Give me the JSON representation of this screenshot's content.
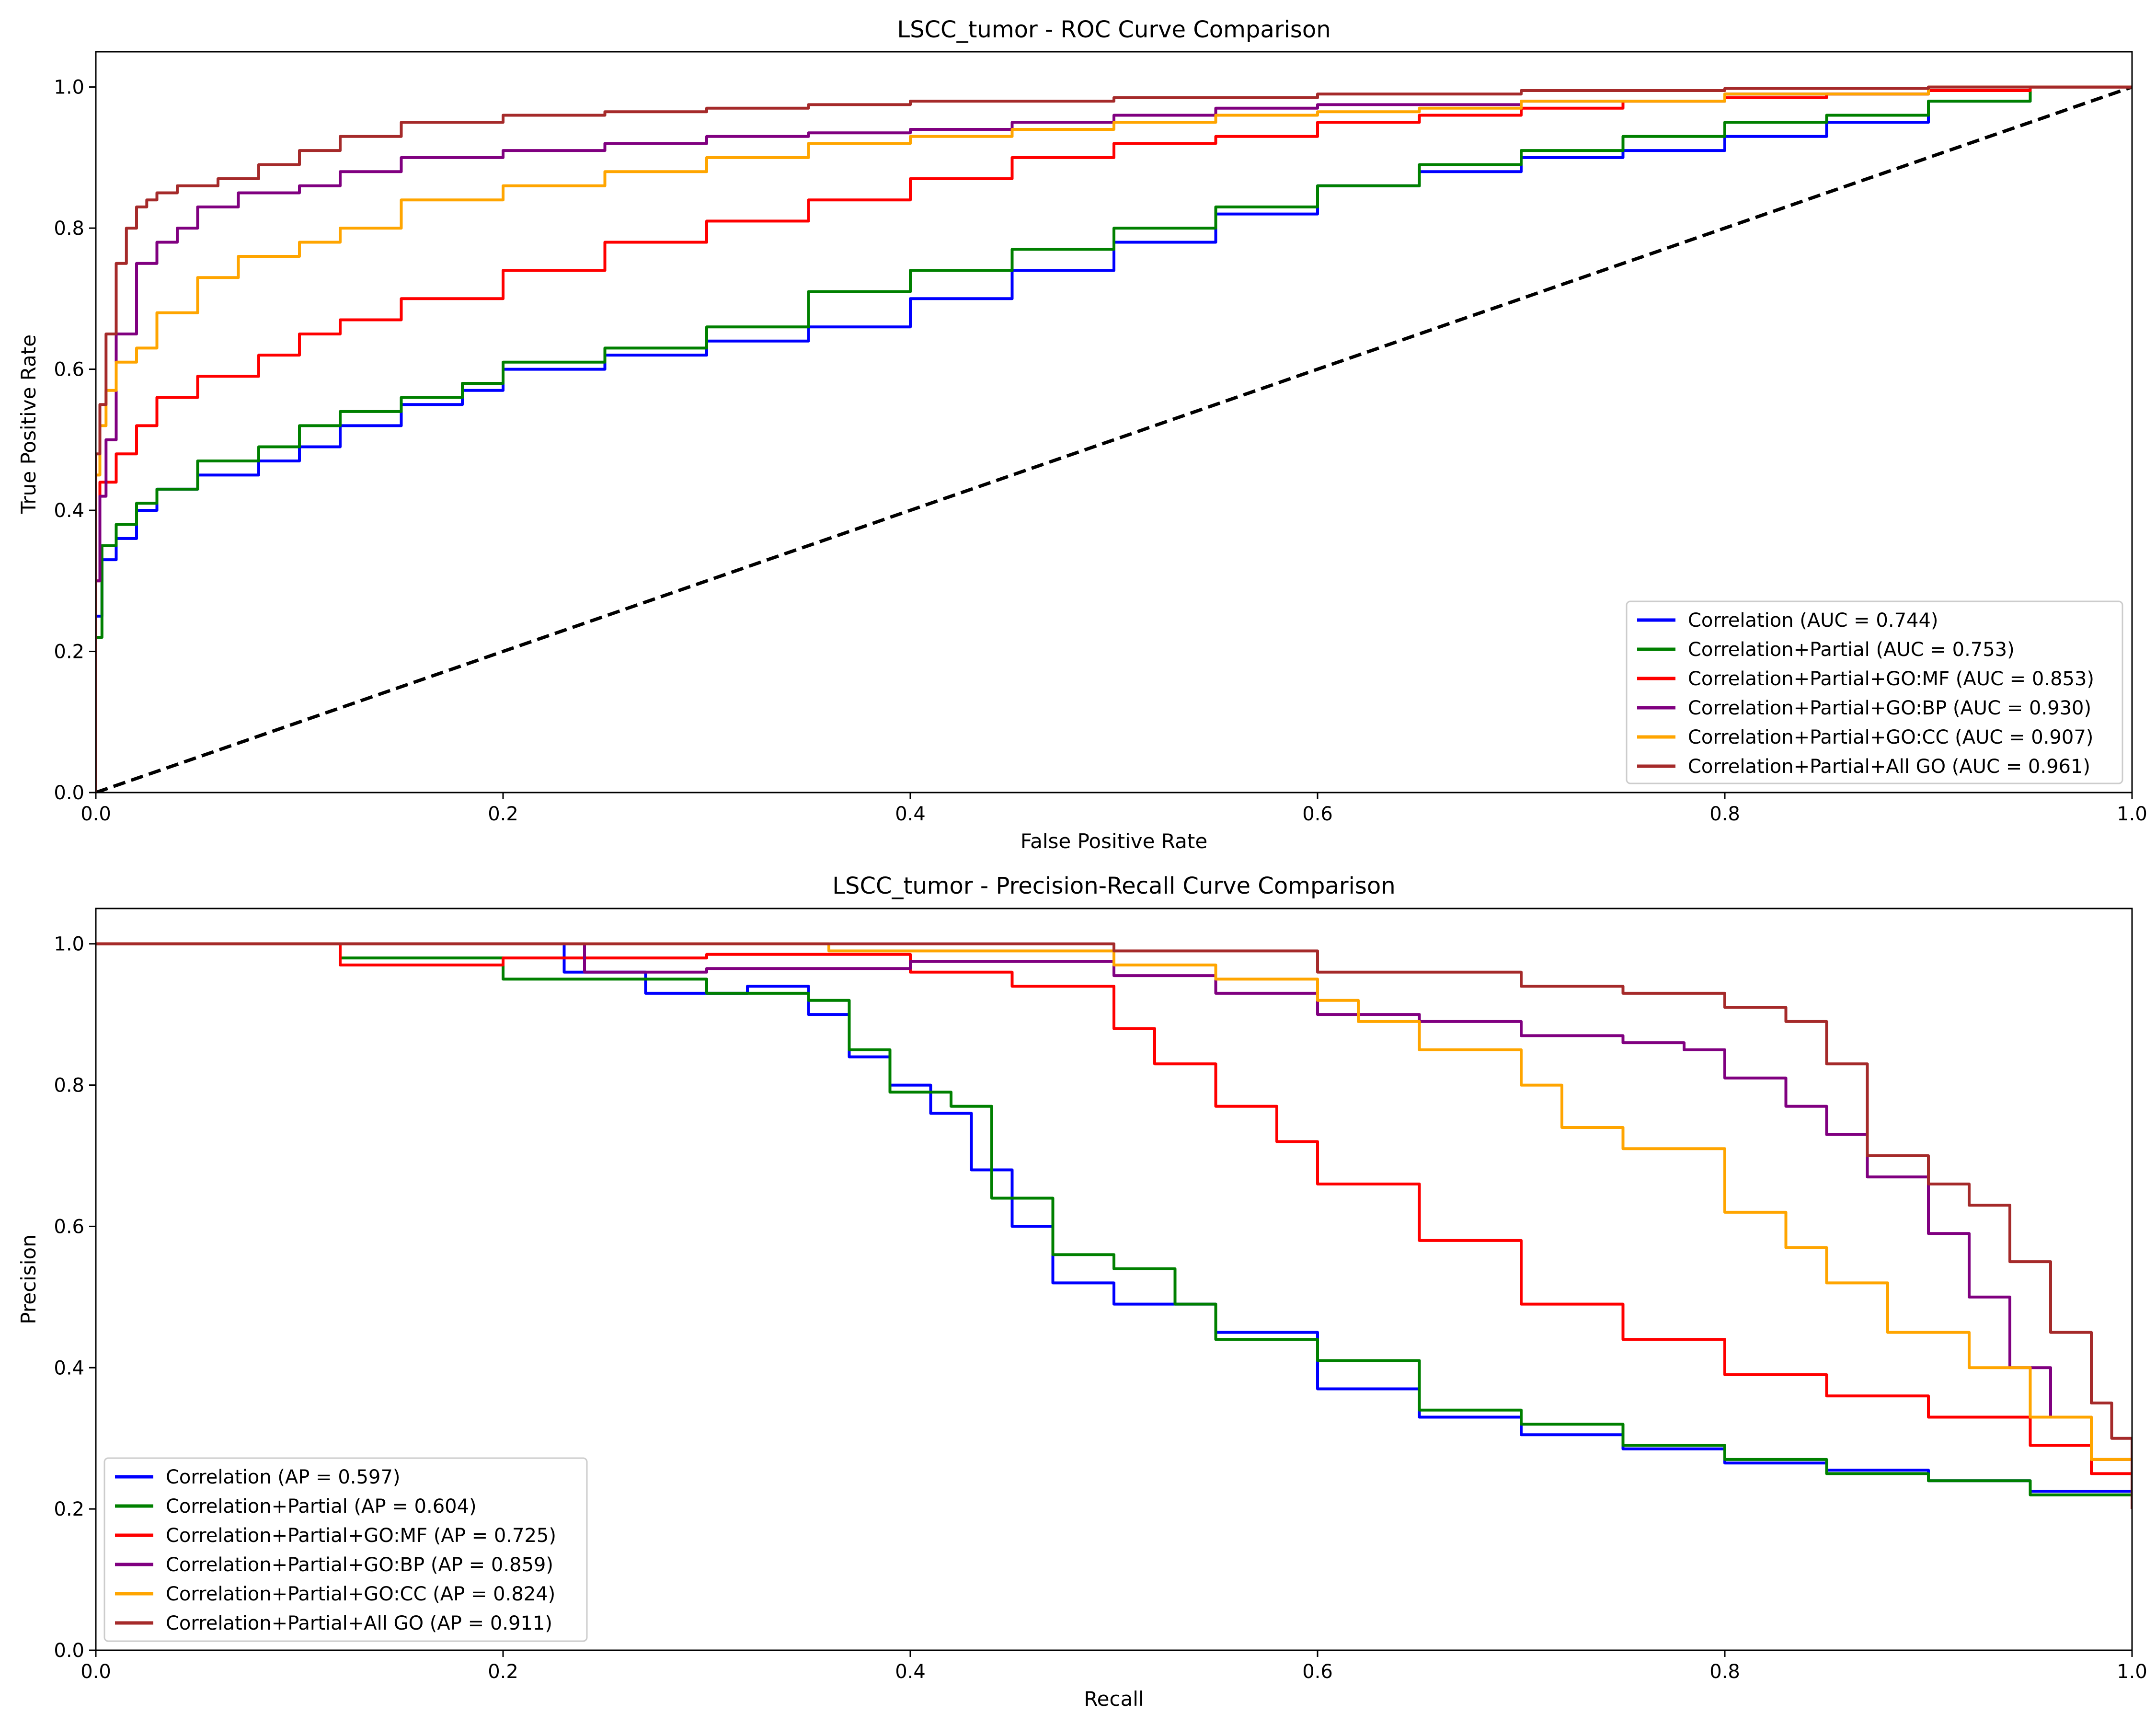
{
  "chart_data": [
    {
      "type": "line",
      "title": "LSCC_tumor - ROC Curve Comparison",
      "xlabel": "False Positive Rate",
      "ylabel": "True Positive Rate",
      "xlim": [
        0.0,
        1.0
      ],
      "ylim": [
        0.0,
        1.05
      ],
      "xticks": [
        "0.0",
        "0.2",
        "0.4",
        "0.6",
        "0.8",
        "1.0"
      ],
      "yticks": [
        "0.0",
        "0.2",
        "0.4",
        "0.6",
        "0.8",
        "1.0"
      ],
      "grid": false,
      "legend_position": "lower-right",
      "series": [
        {
          "name": "Correlation (AUC = 0.744)",
          "color": "#0000ff",
          "x": [
            0,
            0.003,
            0.01,
            0.02,
            0.03,
            0.05,
            0.08,
            0.1,
            0.12,
            0.15,
            0.18,
            0.2,
            0.25,
            0.3,
            0.35,
            0.4,
            0.45,
            0.5,
            0.55,
            0.6,
            0.65,
            0.7,
            0.75,
            0.8,
            0.85,
            0.9,
            0.95,
            1.0
          ],
          "y": [
            0,
            0.25,
            0.33,
            0.36,
            0.4,
            0.43,
            0.45,
            0.47,
            0.49,
            0.52,
            0.55,
            0.57,
            0.6,
            0.62,
            0.64,
            0.66,
            0.7,
            0.74,
            0.78,
            0.82,
            0.86,
            0.88,
            0.9,
            0.91,
            0.93,
            0.95,
            0.98,
            1.0
          ]
        },
        {
          "name": "Correlation+Partial (AUC = 0.753)",
          "color": "#008000",
          "x": [
            0,
            0.003,
            0.01,
            0.02,
            0.03,
            0.05,
            0.08,
            0.1,
            0.12,
            0.15,
            0.18,
            0.2,
            0.25,
            0.3,
            0.35,
            0.4,
            0.45,
            0.5,
            0.55,
            0.6,
            0.65,
            0.7,
            0.75,
            0.8,
            0.85,
            0.9,
            0.95,
            1.0
          ],
          "y": [
            0,
            0.22,
            0.35,
            0.38,
            0.41,
            0.43,
            0.47,
            0.49,
            0.52,
            0.54,
            0.56,
            0.58,
            0.61,
            0.63,
            0.66,
            0.71,
            0.74,
            0.77,
            0.8,
            0.83,
            0.86,
            0.89,
            0.91,
            0.93,
            0.95,
            0.96,
            0.98,
            1.0
          ]
        },
        {
          "name": "Correlation+Partial+GO:MF (AUC = 0.853)",
          "color": "#ff0000",
          "x": [
            0,
            0.002,
            0.01,
            0.02,
            0.03,
            0.05,
            0.08,
            0.1,
            0.12,
            0.15,
            0.2,
            0.25,
            0.3,
            0.35,
            0.4,
            0.45,
            0.5,
            0.55,
            0.6,
            0.65,
            0.7,
            0.75,
            0.8,
            0.85,
            0.9,
            0.95,
            1.0
          ],
          "y": [
            0,
            0.3,
            0.44,
            0.48,
            0.52,
            0.56,
            0.59,
            0.62,
            0.65,
            0.67,
            0.7,
            0.74,
            0.78,
            0.81,
            0.84,
            0.87,
            0.9,
            0.92,
            0.93,
            0.95,
            0.96,
            0.97,
            0.98,
            0.985,
            0.99,
            0.995,
            1.0
          ]
        },
        {
          "name": "Correlation+Partial+GO:BP (AUC = 0.930)",
          "color": "#800080",
          "x": [
            0,
            0.002,
            0.005,
            0.01,
            0.02,
            0.03,
            0.04,
            0.05,
            0.07,
            0.1,
            0.12,
            0.15,
            0.2,
            0.25,
            0.3,
            0.35,
            0.4,
            0.45,
            0.5,
            0.55,
            0.6,
            0.7,
            0.8,
            0.9,
            1.0
          ],
          "y": [
            0,
            0.3,
            0.42,
            0.5,
            0.65,
            0.75,
            0.78,
            0.8,
            0.83,
            0.85,
            0.86,
            0.88,
            0.9,
            0.91,
            0.92,
            0.93,
            0.935,
            0.94,
            0.95,
            0.96,
            0.97,
            0.975,
            0.98,
            0.99,
            1.0
          ]
        },
        {
          "name": "Correlation+Partial+GO:CC (AUC = 0.907)",
          "color": "#ffa500",
          "x": [
            0,
            0.002,
            0.005,
            0.01,
            0.02,
            0.03,
            0.05,
            0.07,
            0.1,
            0.12,
            0.15,
            0.2,
            0.25,
            0.3,
            0.35,
            0.4,
            0.45,
            0.5,
            0.55,
            0.6,
            0.65,
            0.7,
            0.8,
            0.9,
            1.0
          ],
          "y": [
            0,
            0.45,
            0.52,
            0.57,
            0.61,
            0.63,
            0.68,
            0.73,
            0.76,
            0.78,
            0.8,
            0.84,
            0.86,
            0.88,
            0.9,
            0.92,
            0.93,
            0.94,
            0.95,
            0.96,
            0.965,
            0.97,
            0.98,
            0.99,
            1.0
          ]
        },
        {
          "name": "Correlation+Partial+All GO (AUC = 0.961)",
          "color": "#a52a2a",
          "x": [
            0,
            0.002,
            0.005,
            0.01,
            0.015,
            0.02,
            0.025,
            0.03,
            0.04,
            0.06,
            0.08,
            0.1,
            0.12,
            0.15,
            0.2,
            0.25,
            0.3,
            0.35,
            0.4,
            0.5,
            0.6,
            0.7,
            0.8,
            0.9,
            1.0
          ],
          "y": [
            0,
            0.48,
            0.55,
            0.65,
            0.75,
            0.8,
            0.83,
            0.84,
            0.85,
            0.86,
            0.87,
            0.89,
            0.91,
            0.93,
            0.95,
            0.96,
            0.965,
            0.97,
            0.975,
            0.98,
            0.985,
            0.99,
            0.995,
            0.998,
            1.0
          ]
        }
      ],
      "reference_line": {
        "x": [
          0,
          1
        ],
        "y": [
          0,
          1
        ],
        "color": "#000000",
        "style": "dashed"
      }
    },
    {
      "type": "line",
      "title": "LSCC_tumor - Precision-Recall Curve Comparison",
      "xlabel": "Recall",
      "ylabel": "Precision",
      "xlim": [
        0.0,
        1.0
      ],
      "ylim": [
        0.0,
        1.05
      ],
      "xticks": [
        "0.0",
        "0.2",
        "0.4",
        "0.6",
        "0.8",
        "1.0"
      ],
      "yticks": [
        "0.0",
        "0.2",
        "0.4",
        "0.6",
        "0.8",
        "1.0"
      ],
      "grid": false,
      "legend_position": "lower-left",
      "series": [
        {
          "name": "Correlation (AP = 0.597)",
          "color": "#0000ff",
          "x": [
            0,
            0.22,
            0.23,
            0.27,
            0.32,
            0.35,
            0.37,
            0.39,
            0.41,
            0.43,
            0.45,
            0.47,
            0.5,
            0.55,
            0.6,
            0.65,
            0.7,
            0.75,
            0.8,
            0.85,
            0.9,
            0.95,
            1.0
          ],
          "y": [
            1.0,
            1.0,
            0.96,
            0.93,
            0.94,
            0.9,
            0.84,
            0.8,
            0.76,
            0.68,
            0.6,
            0.52,
            0.49,
            0.45,
            0.37,
            0.33,
            0.305,
            0.285,
            0.265,
            0.255,
            0.24,
            0.225,
            0.2
          ]
        },
        {
          "name": "Correlation+Partial (AP = 0.604)",
          "color": "#008000",
          "x": [
            0,
            0.115,
            0.12,
            0.2,
            0.25,
            0.3,
            0.35,
            0.37,
            0.39,
            0.42,
            0.44,
            0.47,
            0.5,
            0.53,
            0.55,
            0.6,
            0.65,
            0.7,
            0.75,
            0.8,
            0.85,
            0.9,
            0.95,
            1.0
          ],
          "y": [
            1.0,
            1.0,
            0.98,
            0.95,
            0.95,
            0.93,
            0.92,
            0.85,
            0.79,
            0.77,
            0.64,
            0.56,
            0.54,
            0.49,
            0.44,
            0.41,
            0.34,
            0.32,
            0.29,
            0.27,
            0.25,
            0.24,
            0.22,
            0.2
          ]
        },
        {
          "name": "Correlation+Partial+GO:MF (AP = 0.725)",
          "color": "#ff0000",
          "x": [
            0,
            0.115,
            0.12,
            0.2,
            0.3,
            0.4,
            0.45,
            0.5,
            0.52,
            0.55,
            0.58,
            0.6,
            0.65,
            0.7,
            0.75,
            0.8,
            0.85,
            0.9,
            0.95,
            0.98,
            1.0
          ],
          "y": [
            1.0,
            1.0,
            0.97,
            0.98,
            0.985,
            0.96,
            0.94,
            0.88,
            0.83,
            0.77,
            0.72,
            0.66,
            0.58,
            0.49,
            0.44,
            0.39,
            0.36,
            0.33,
            0.29,
            0.25,
            0.2
          ]
        },
        {
          "name": "Correlation+Partial+GO:BP (AP = 0.859)",
          "color": "#800080",
          "x": [
            0,
            0.23,
            0.24,
            0.3,
            0.4,
            0.5,
            0.55,
            0.6,
            0.65,
            0.7,
            0.75,
            0.78,
            0.8,
            0.83,
            0.85,
            0.87,
            0.9,
            0.92,
            0.94,
            0.96,
            0.98,
            1.0
          ],
          "y": [
            1.0,
            1.0,
            0.96,
            0.965,
            0.975,
            0.955,
            0.93,
            0.9,
            0.89,
            0.87,
            0.86,
            0.85,
            0.81,
            0.77,
            0.73,
            0.67,
            0.59,
            0.5,
            0.4,
            0.33,
            0.27,
            0.2
          ]
        },
        {
          "name": "Correlation+Partial+GO:CC (AP = 0.824)",
          "color": "#ffa500",
          "x": [
            0,
            0.35,
            0.36,
            0.4,
            0.45,
            0.5,
            0.55,
            0.6,
            0.62,
            0.65,
            0.7,
            0.72,
            0.75,
            0.8,
            0.83,
            0.85,
            0.88,
            0.92,
            0.95,
            0.98,
            1.0
          ],
          "y": [
            1.0,
            1.0,
            0.99,
            0.99,
            0.99,
            0.97,
            0.95,
            0.92,
            0.89,
            0.85,
            0.8,
            0.74,
            0.71,
            0.62,
            0.57,
            0.52,
            0.45,
            0.4,
            0.33,
            0.27,
            0.2
          ]
        },
        {
          "name": "Correlation+Partial+All GO (AP = 0.911)",
          "color": "#a52a2a",
          "x": [
            0,
            0.4,
            0.5,
            0.6,
            0.7,
            0.75,
            0.8,
            0.83,
            0.85,
            0.87,
            0.9,
            0.92,
            0.94,
            0.96,
            0.98,
            0.99,
            1.0
          ],
          "y": [
            1.0,
            1.0,
            0.99,
            0.96,
            0.94,
            0.93,
            0.91,
            0.89,
            0.83,
            0.7,
            0.66,
            0.63,
            0.55,
            0.45,
            0.35,
            0.3,
            0.2
          ]
        }
      ]
    }
  ]
}
